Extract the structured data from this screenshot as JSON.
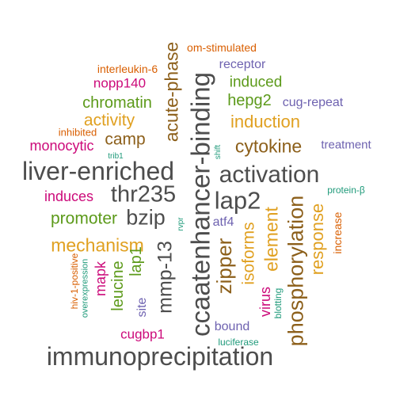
{
  "colors": {
    "dark_gray": "#4d4d4d",
    "brown": "#8c5f1a",
    "gold": "#e0a020",
    "green": "#5c9a1a",
    "magenta": "#cc0a7a",
    "purple": "#6e62b0",
    "teal": "#1f9a7a",
    "orange": "#d95f02"
  },
  "words": {
    "immunoprecipitation": "immunoprecipitation",
    "ccaatenhancer_binding": "ccaatenhancer-binding",
    "phosphorylation": "phosphorylation",
    "liver_enriched": "liver-enriched",
    "activation": "activation",
    "thr235": "thr235",
    "lap2": "lap2",
    "mmp_13": "mmp-13",
    "acute_phase": "acute-phase",
    "cytokine": "cytokine",
    "bzip": "bzip",
    "zipper": "zipper",
    "induction": "induction",
    "mechanism": "mechanism",
    "element": "element",
    "response": "response",
    "isoforms": "isoforms",
    "promoter": "promoter",
    "camp": "camp",
    "chromatin": "chromatin",
    "activity": "activity",
    "induced": "induced",
    "hepg2": "hepg2",
    "induces": "induces",
    "monocytic": "monocytic",
    "leucine": "leucine",
    "lap1": "lap1",
    "mapk": "mapk",
    "nopp140": "nopp140",
    "cugbp1": "cugbp1",
    "virus": "virus",
    "receptor": "receptor",
    "cug_repeat": "cug-repeat",
    "treatment": "treatment",
    "atf4": "atf4",
    "bound": "bound",
    "site": "site",
    "interleukin_6": "interleukin-6",
    "om_stimulated": "om-stimulated",
    "inhibited": "inhibited",
    "increase": "increase",
    "hiv_1_positive": "hiv-1-positive",
    "protein_beta": "protein-β",
    "blotting": "blotting",
    "overexpression": "overexpression",
    "luciferase": "luciferase",
    "trib1": "trib1",
    "shift": "shift",
    "rvpr": "rvpr"
  }
}
